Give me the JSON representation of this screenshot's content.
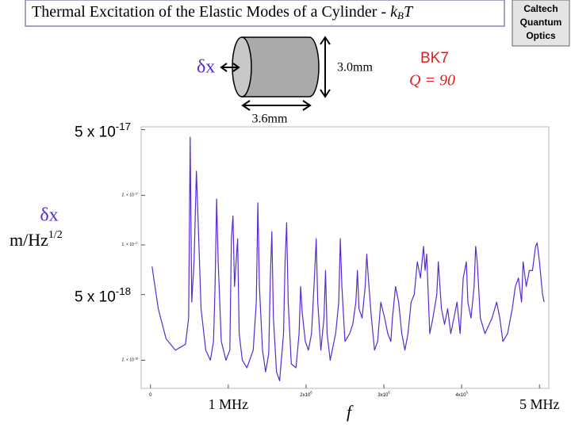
{
  "header": {
    "title": "Thermal Excitation of the Elastic Modes of a Cylinder - ",
    "title_symbol": "k",
    "title_symbol_sub": "B",
    "title_symbol_tail": "T"
  },
  "logo": {
    "lines": [
      "Caltech",
      "Quantum",
      "Optics"
    ]
  },
  "diagram": {
    "displacement": "δx",
    "height": "3.0mm",
    "length": "3.6mm",
    "material": "BK7",
    "quality": "Q = 90"
  },
  "chart_data": {
    "type": "line",
    "y_label": "δx",
    "y_unit": "m/Hz",
    "y_unit_exp": "1/2",
    "x_label": "f",
    "color": "#5a2ad0",
    "log_y": true,
    "xlim": [
      -120000,
      5120000
    ],
    "ylim": [
      1.35e-18,
      5.2e-17
    ],
    "xticks": [
      0,
      {
        "value": 1000000,
        "label": "1 MHz"
      },
      {
        "value": 2000000,
        "label": "2x10",
        "exponent": "6"
      },
      {
        "value": 3000000,
        "label": "3x10",
        "exponent": "6"
      },
      {
        "value": 4000000,
        "label": "4x10",
        "exponent": "6"
      },
      {
        "value": 5000000,
        "label": "5 MHz"
      }
    ],
    "yticks": [
      {
        "value": 5e-17,
        "label": "5 x 10",
        "exponent": "-17"
      },
      {
        "value": 2e-17,
        "label": "2. × 10",
        "exponent": "-17"
      },
      {
        "value": 1e-17,
        "label": "1. × 10",
        "exponent": "-17"
      },
      {
        "value": 5e-18,
        "label": "5 x 10",
        "exponent": "-18"
      },
      {
        "value": 2e-18,
        "label": "2. × 10",
        "exponent": "-18"
      }
    ],
    "x": [
      20000,
      100000,
      200000,
      320000,
      450000,
      490000,
      510000,
      530000,
      560000,
      590000,
      620000,
      650000,
      710000,
      770000,
      810000,
      830000,
      850000,
      870000,
      910000,
      970000,
      1020000,
      1040000,
      1060000,
      1080000,
      1120000,
      1140000,
      1180000,
      1240000,
      1320000,
      1360000,
      1380000,
      1400000,
      1440000,
      1480000,
      1520000,
      1540000,
      1560000,
      1580000,
      1620000,
      1660000,
      1710000,
      1730000,
      1750000,
      1770000,
      1810000,
      1870000,
      1910000,
      1930000,
      1950000,
      1990000,
      2030000,
      2070000,
      2110000,
      2130000,
      2150000,
      2190000,
      2230000,
      2250000,
      2270000,
      2310000,
      2380000,
      2420000,
      2440000,
      2460000,
      2500000,
      2560000,
      2600000,
      2640000,
      2660000,
      2680000,
      2720000,
      2760000,
      2780000,
      2800000,
      2840000,
      2880000,
      2920000,
      2960000,
      3010000,
      3050000,
      3090000,
      3110000,
      3150000,
      3190000,
      3230000,
      3270000,
      3310000,
      3350000,
      3390000,
      3430000,
      3470000,
      3510000,
      3530000,
      3550000,
      3590000,
      3630000,
      3680000,
      3700000,
      3740000,
      3780000,
      3820000,
      3860000,
      3900000,
      3940000,
      3980000,
      4020000,
      4060000,
      4080000,
      4120000,
      4160000,
      4180000,
      4200000,
      4240000,
      4300000,
      4390000,
      4450000,
      4490000,
      4530000,
      4590000,
      4650000,
      4690000,
      4730000,
      4770000,
      4790000,
      4830000,
      4870000,
      4910000,
      4950000,
      4970000,
      5000000,
      5040000,
      5060000
    ],
    "values": [
      7.4e-18,
      4.1e-18,
      2.7e-18,
      2.3e-18,
      2.5e-18,
      3.6e-18,
      4.5e-17,
      4.5e-18,
      7.9e-18,
      2.8e-17,
      1.09e-17,
      4.1e-18,
      2.3e-18,
      2e-18,
      2.6e-18,
      5.6e-18,
      1.9e-17,
      7.9e-18,
      2.6e-18,
      2e-18,
      2.3e-18,
      1.09e-17,
      1.5e-17,
      5.6e-18,
      1.09e-17,
      2.9e-18,
      2e-18,
      1.8e-18,
      2.3e-18,
      4.5e-18,
      1.8e-17,
      5.6e-18,
      2.3e-18,
      1.7e-18,
      2.2e-18,
      6.3e-18,
      1.2e-17,
      3.6e-18,
      1.7e-18,
      1.5e-18,
      2.9e-18,
      7.9e-18,
      1.36e-17,
      4.5e-18,
      1.9e-18,
      1.8e-18,
      2.9e-18,
      5.6e-18,
      3.9e-18,
      2.6e-18,
      2.3e-18,
      2.9e-18,
      6.7e-18,
      1.09e-17,
      4.5e-18,
      2.3e-18,
      3.6e-18,
      7e-18,
      2.9e-18,
      2e-18,
      2.9e-18,
      4.5e-18,
      1.09e-17,
      5.6e-18,
      2.6e-18,
      2.9e-18,
      3.3e-18,
      4.5e-18,
      7e-18,
      4.1e-18,
      3.6e-18,
      5.6e-18,
      8.8e-18,
      6.3e-18,
      3.6e-18,
      2.3e-18,
      2.6e-18,
      4.5e-18,
      3.6e-18,
      2.9e-18,
      2.6e-18,
      3.6e-18,
      5.6e-18,
      4.5e-18,
      2.9e-18,
      2.3e-18,
      2.9e-18,
      4.5e-18,
      5e-18,
      7.9e-18,
      6.3e-18,
      9.8e-18,
      7e-18,
      8.8e-18,
      2.9e-18,
      3.6e-18,
      5e-18,
      7.9e-18,
      4.1e-18,
      3.3e-18,
      4.1e-18,
      2.9e-18,
      3.6e-18,
      4.5e-18,
      2.9e-18,
      6.3e-18,
      7.9e-18,
      4.5e-18,
      3.6e-18,
      5.6e-18,
      9.8e-18,
      7.9e-18,
      3.6e-18,
      2.9e-18,
      3.6e-18,
      4.5e-18,
      3.6e-18,
      2.6e-18,
      2.9e-18,
      4.1e-18,
      5.6e-18,
      6.3e-18,
      4.5e-18,
      7.9e-18,
      5.6e-18,
      7e-18,
      7e-18,
      9.8e-18,
      1.03e-17,
      7.9e-18,
      5e-18,
      4.5e-18
    ]
  }
}
